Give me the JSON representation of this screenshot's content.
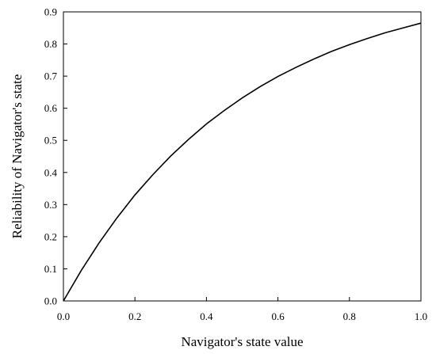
{
  "chart_data": {
    "type": "line",
    "title": "",
    "xlabel": "Navigator's state value",
    "ylabel": "Reliability of Navigator's state",
    "xlim": [
      0.0,
      1.0
    ],
    "ylim": [
      0.0,
      0.9
    ],
    "x_ticks": [
      "0.0",
      "0.2",
      "0.4",
      "0.6",
      "0.8",
      "1.0"
    ],
    "y_ticks": [
      "0.0",
      "0.1",
      "0.2",
      "0.3",
      "0.4",
      "0.5",
      "0.6",
      "0.7",
      "0.8",
      "0.9"
    ],
    "grid": false,
    "legend": "none",
    "line_color": "#000000",
    "series": [
      {
        "x": [
          0.0,
          0.05,
          0.1,
          0.15,
          0.2,
          0.25,
          0.3,
          0.35,
          0.4,
          0.45,
          0.5,
          0.55,
          0.6,
          0.65,
          0.7,
          0.75,
          0.8,
          0.85,
          0.9,
          0.95,
          1.0
        ],
        "values": [
          0.0,
          0.095,
          0.181,
          0.259,
          0.33,
          0.393,
          0.451,
          0.503,
          0.551,
          0.593,
          0.632,
          0.667,
          0.699,
          0.727,
          0.753,
          0.777,
          0.798,
          0.817,
          0.835,
          0.85,
          0.865
        ]
      }
    ]
  }
}
